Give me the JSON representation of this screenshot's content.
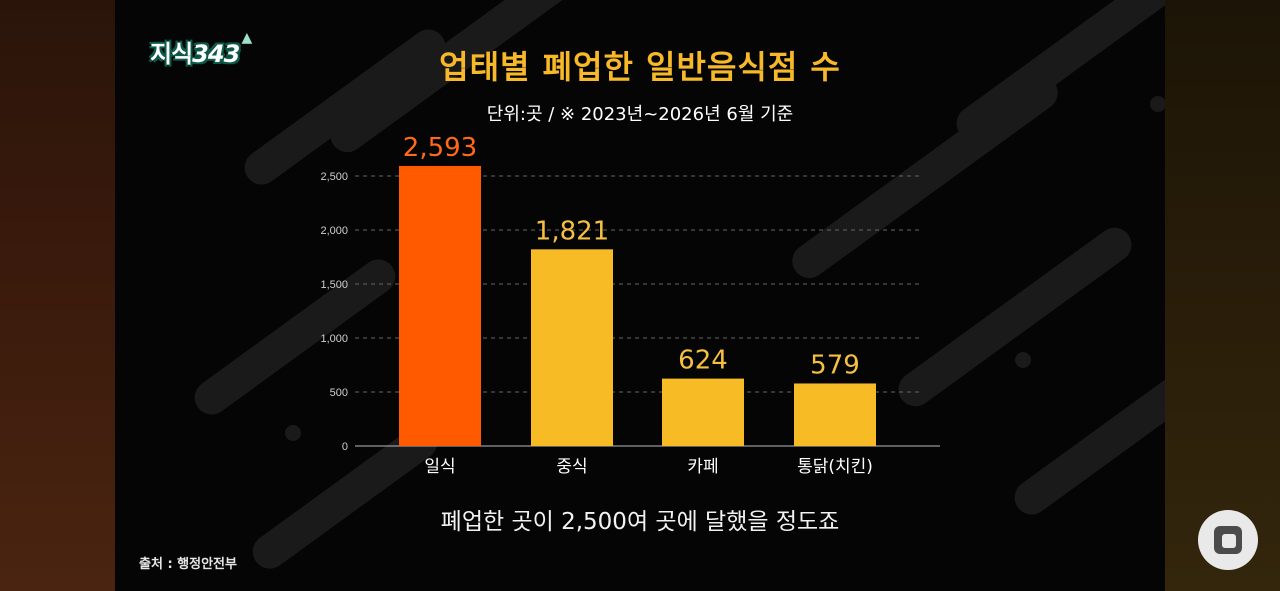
{
  "logo": {
    "text": "지식",
    "number": "343"
  },
  "chart_data": {
    "type": "bar",
    "title": "업태별 폐업한 일반음식점 수",
    "subtitle": "단위:곳 / ※ 2023년~2026년 6월 기준",
    "categories": [
      "일식",
      "중식",
      "카페",
      "통닭(치킨)"
    ],
    "values": [
      2593,
      1821,
      624,
      579
    ],
    "value_labels": [
      "2,593",
      "1,821",
      "624",
      "579"
    ],
    "y_ticks": [
      0,
      500,
      1000,
      1500,
      2000,
      2500
    ],
    "y_tick_labels": [
      "0",
      "500",
      "1,000",
      "1,500",
      "2,000",
      "2,500"
    ],
    "ylim": [
      0,
      2500
    ],
    "grid": true,
    "colors": {
      "highlight": "#ff5a00",
      "default": "#f7bb26",
      "highlight_label": "#ff6a1a",
      "default_label": "#f5c042"
    }
  },
  "caption": "폐업한 곳이 2,500여 곳에 달했을 정도죠",
  "source": "출처 : 행정안전부"
}
